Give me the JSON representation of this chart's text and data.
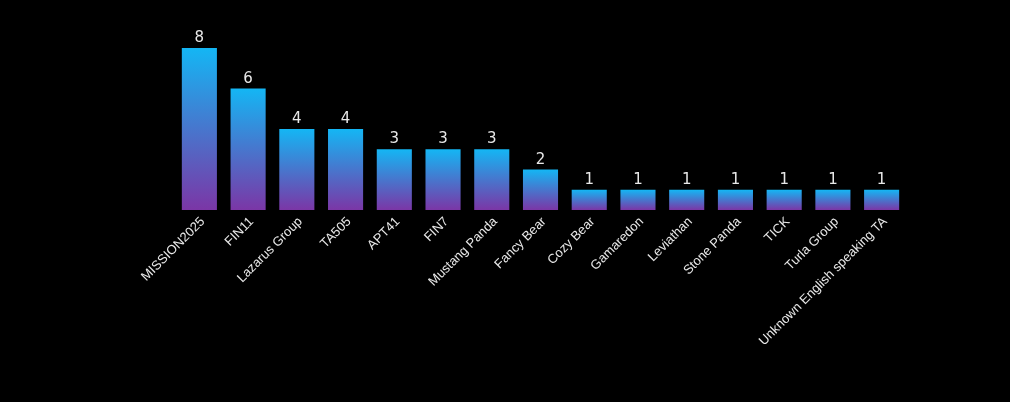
{
  "chart_data": {
    "type": "bar",
    "categories": [
      "MISSION2025",
      "FIN11",
      "Lazarus Group",
      "TA505",
      "APT41",
      "FIN7",
      "Mustang Panda",
      "Fancy Bear",
      "Cozy Bear",
      "Gamaredon",
      "Leviathan",
      "Stone Panda",
      "TICK",
      "Turla Group",
      "Unknown English speaking TA"
    ],
    "values": [
      8,
      6,
      4,
      4,
      3,
      3,
      3,
      2,
      1,
      1,
      1,
      1,
      1,
      1,
      1
    ],
    "color": "#14b6f4",
    "ylim": [
      0,
      8
    ],
    "data_labels": true
  }
}
